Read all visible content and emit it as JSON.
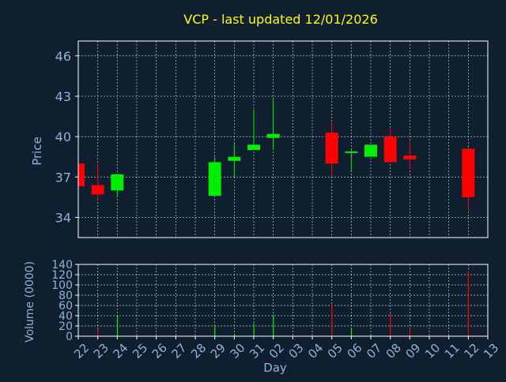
{
  "colors": {
    "background": "#0f1f30",
    "title": "#ffff00",
    "axis_text": "#8fb3d9",
    "frame": "#ffffff",
    "grid": "#ffffff",
    "up": "#00ee00",
    "down": "#ff0000"
  },
  "chart_data": [
    {
      "type": "candlestick",
      "title": "VCP - last updated 12/01/2026",
      "ylabel": "Price",
      "ylim": [
        32.5,
        47.1
      ],
      "yticks": [
        34,
        37,
        40,
        43,
        46
      ],
      "ytick_labels": [
        "34",
        "37",
        "40",
        "43",
        "46"
      ],
      "grid": true,
      "candles": [
        {
          "day": "22",
          "open": 38.0,
          "high": 38.0,
          "low": 36.3,
          "close": 36.3
        },
        {
          "day": "23",
          "open": 36.4,
          "high": 38.0,
          "low": 35.3,
          "close": 35.7
        },
        {
          "day": "24",
          "open": 36.0,
          "high": 37.2,
          "low": 35.5,
          "close": 37.2
        },
        {
          "day": "29",
          "open": 35.6,
          "high": 38.5,
          "low": 35.6,
          "close": 38.1
        },
        {
          "day": "30",
          "open": 38.2,
          "high": 39.6,
          "low": 37.0,
          "close": 38.5
        },
        {
          "day": "31",
          "open": 39.0,
          "high": 42.0,
          "low": 39.0,
          "close": 39.4
        },
        {
          "day": "02",
          "open": 39.9,
          "high": 42.9,
          "low": 39.0,
          "close": 40.2
        },
        {
          "day": "05",
          "open": 40.3,
          "high": 41.1,
          "low": 37.0,
          "close": 38.0
        },
        {
          "day": "06",
          "open": 38.9,
          "high": 39.0,
          "low": 37.4,
          "close": 38.9
        },
        {
          "day": "07",
          "open": 38.5,
          "high": 39.4,
          "low": 38.5,
          "close": 39.4
        },
        {
          "day": "08",
          "open": 40.0,
          "high": 40.6,
          "low": 38.1,
          "close": 38.1
        },
        {
          "day": "09",
          "open": 38.6,
          "high": 39.7,
          "low": 37.6,
          "close": 38.3
        },
        {
          "day": "12",
          "open": 39.1,
          "high": 39.2,
          "low": 34.6,
          "close": 35.5
        }
      ]
    },
    {
      "type": "bar",
      "ylabel": "Volume (0000)",
      "xlabel": "Day",
      "ylim": [
        0,
        140
      ],
      "yticks": [
        0,
        20,
        40,
        60,
        80,
        100,
        120,
        140
      ],
      "ytick_labels": [
        "0",
        "20",
        "40",
        "60",
        "80",
        "100",
        "120",
        "140"
      ],
      "grid": true,
      "categories": [
        "22",
        "23",
        "24",
        "25",
        "26",
        "27",
        "28",
        "29",
        "30",
        "31",
        "02",
        "03",
        "04",
        "05",
        "06",
        "07",
        "08",
        "09",
        "10",
        "11",
        "12",
        "13"
      ],
      "bars": [
        {
          "day": "23",
          "value": 14,
          "direction": "down"
        },
        {
          "day": "24",
          "value": 39,
          "direction": "up"
        },
        {
          "day": "29",
          "value": 22,
          "direction": "up"
        },
        {
          "day": "30",
          "value": 5,
          "direction": "up"
        },
        {
          "day": "31",
          "value": 25,
          "direction": "up"
        },
        {
          "day": "02",
          "value": 42,
          "direction": "up"
        },
        {
          "day": "05",
          "value": 62,
          "direction": "down"
        },
        {
          "day": "06",
          "value": 17,
          "direction": "up"
        },
        {
          "day": "07",
          "value": 3,
          "direction": "up"
        },
        {
          "day": "08",
          "value": 45,
          "direction": "down"
        },
        {
          "day": "09",
          "value": 15,
          "direction": "down"
        },
        {
          "day": "12",
          "value": 128,
          "direction": "down"
        }
      ]
    }
  ]
}
